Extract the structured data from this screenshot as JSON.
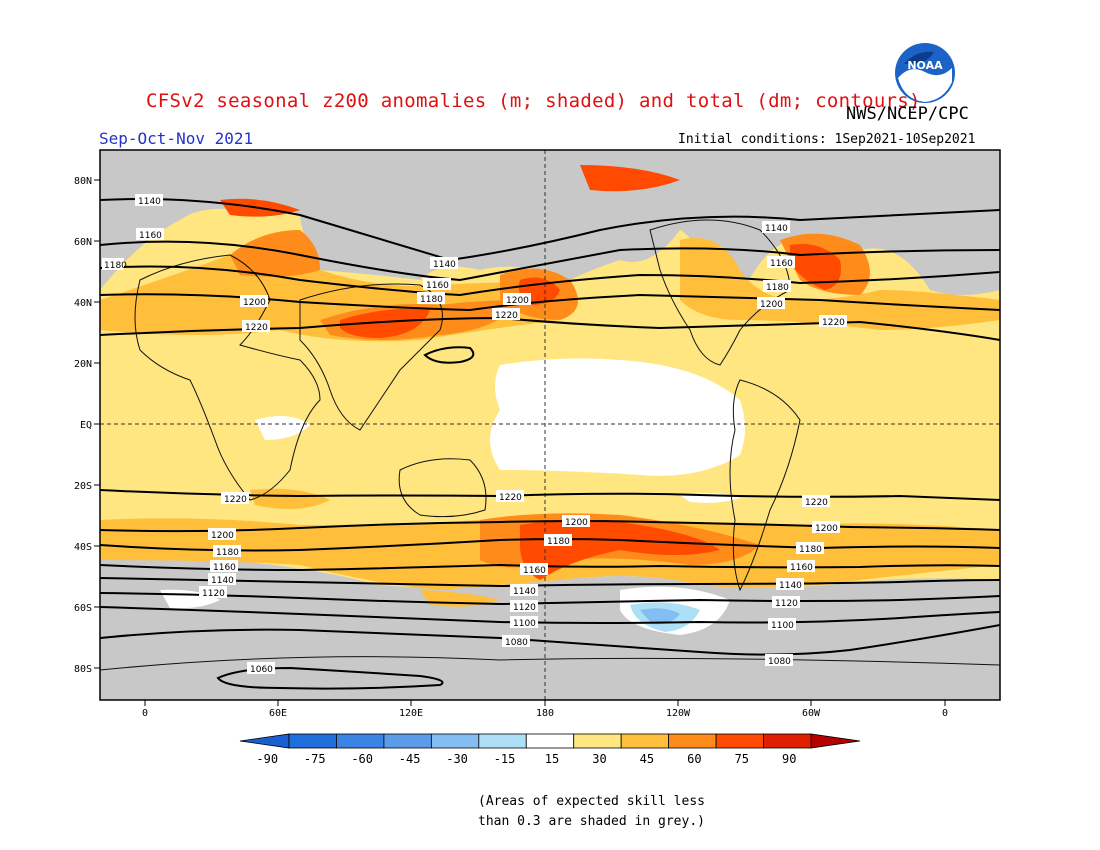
{
  "title": "CFSv2 seasonal z200 anomalies (m; shaded) and total (dm; contours)",
  "agency": "NWS/NCEP/CPC",
  "season": "Sep-Oct-Nov 2021",
  "initial_conditions": "Initial conditions: 1Sep2021-10Sep2021",
  "logo_text": "NOAA",
  "latitude_labels": [
    "80N",
    "60N",
    "40N",
    "20N",
    "EQ",
    "20S",
    "40S",
    "60S",
    "80S"
  ],
  "longitude_labels": [
    "0",
    "60E",
    "120E",
    "180",
    "120W",
    "60W",
    "0"
  ],
  "colorbar": {
    "ticks": [
      "-90",
      "-75",
      "-60",
      "-45",
      "-30",
      "-15",
      "15",
      "30",
      "45",
      "60",
      "75",
      "90"
    ],
    "colors": [
      "#1e6fdc",
      "#3a84e6",
      "#5a9bea",
      "#84bdf2",
      "#ade0f6",
      "#ffffff",
      "#ffe680",
      "#ffbf3a",
      "#ff8c1a",
      "#ff4a00",
      "#e01e00"
    ],
    "low_arrow_color": "#1a5fd0",
    "high_arrow_color": "#b40000"
  },
  "skill_mask_color": "#c8c8c8",
  "contour_labels": {
    "c1140a": "1140",
    "c1160a": "1160",
    "c1180a": "1180",
    "c1200a": "1200",
    "c1220a": "1220",
    "c1140b": "1140",
    "c1160b": "1160",
    "c1180b": "1180",
    "c1200b": "1200",
    "c1220b": "1220",
    "c1140c": "1140",
    "c1160c": "1160",
    "c1180c": "1180",
    "c1200c": "1200",
    "c1220c": "1220",
    "s1220a": "1220",
    "s1200a": "1200",
    "s1180a": "1180",
    "s1160a": "1160",
    "s1140a": "1140",
    "s1120a": "1120",
    "s1220b": "1220",
    "s1200b": "1200",
    "s1180b": "1180",
    "s1160b": "1160",
    "s1140b": "1140",
    "s1120b": "1120",
    "s1100b": "1100",
    "s1080b": "1080",
    "s1220c": "1220",
    "s1200c": "1200",
    "s1180c": "1180",
    "s1160c": "1160",
    "s1140c": "1140",
    "s1120c": "1120",
    "s1100c": "1100",
    "s1080c": "1080",
    "s1060": "1060"
  },
  "note_line1": "(Areas of expected skill less",
  "note_line2": "than 0.3 are shaded in grey.)"
}
